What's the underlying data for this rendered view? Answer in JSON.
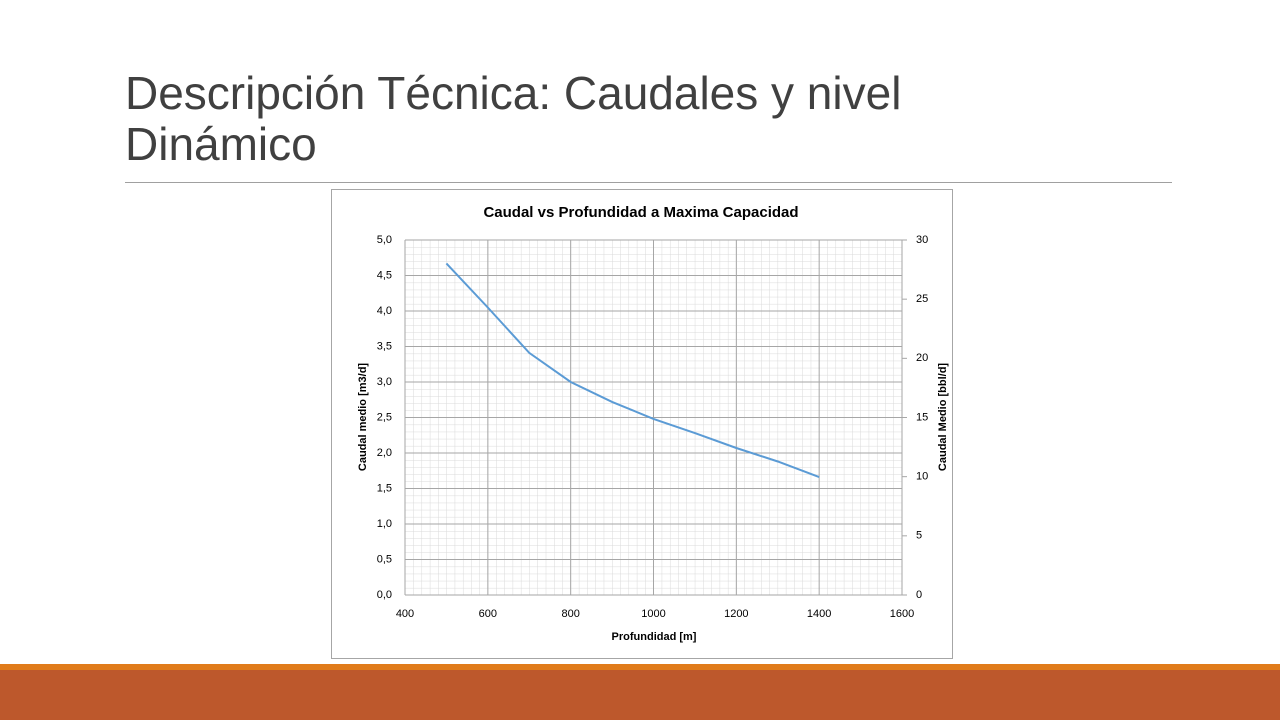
{
  "slide_title": "Descripción Técnica: Caudales y nivel Dinámico",
  "chart_data": {
    "type": "line",
    "title": "Caudal vs Profundidad a Maxima Capacidad",
    "x_label": "Profundidad [m]",
    "y_label": "Caudal medio [m3/d]",
    "y2_label": "Caudal Medio [bbl/d]",
    "x": [
      500,
      600,
      700,
      800,
      900,
      1000,
      1100,
      1200,
      1300,
      1400
    ],
    "values": [
      4.67,
      4.05,
      3.41,
      3.0,
      2.72,
      2.48,
      2.28,
      2.07,
      1.88,
      1.66
    ],
    "color": "#5b9bd5",
    "xlim": [
      400,
      1600
    ],
    "xticks": [
      400,
      600,
      800,
      1000,
      1200,
      1400,
      1600
    ],
    "ylim": [
      0,
      5
    ],
    "yticks": [
      {
        "value": 0,
        "label": "0,0"
      },
      {
        "value": 0.5,
        "label": "0,5"
      },
      {
        "value": 1,
        "label": "1,0"
      },
      {
        "value": 1.5,
        "label": "1,5"
      },
      {
        "value": 2,
        "label": "2,0"
      },
      {
        "value": 2.5,
        "label": "2,5"
      },
      {
        "value": 3,
        "label": "3,0"
      },
      {
        "value": 3.5,
        "label": "3,5"
      },
      {
        "value": 4,
        "label": "4,0"
      },
      {
        "value": 4.5,
        "label": "4,5"
      },
      {
        "value": 5,
        "label": "5,0"
      }
    ],
    "y2lim": [
      0,
      30
    ],
    "y2ticks": [
      0,
      5,
      10,
      15,
      20,
      25,
      30
    ],
    "grid": true
  }
}
